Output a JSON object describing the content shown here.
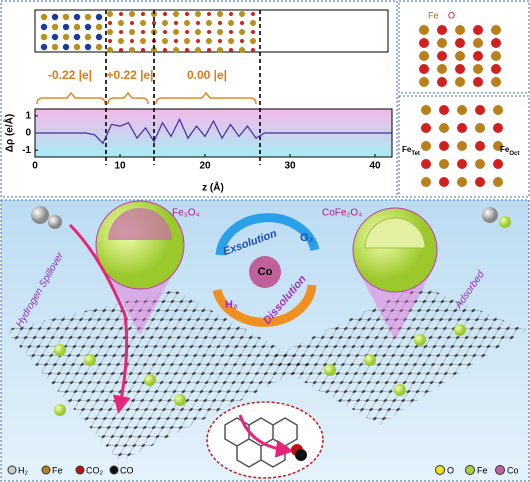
{
  "chart_data": {
    "type": "line",
    "x": [
      0,
      1,
      2,
      3,
      4,
      5,
      6,
      7,
      8,
      9,
      10,
      11,
      12,
      13,
      14,
      15,
      16,
      17,
      18,
      19,
      20,
      21,
      22,
      23,
      24,
      25,
      26,
      27,
      28,
      29,
      30,
      31,
      32,
      33,
      34,
      35,
      36,
      37,
      38,
      39,
      40,
      41,
      42
    ],
    "series": [
      {
        "color": "#4b2a9a",
        "values": [
          0,
          0,
          0,
          0,
          0,
          0,
          0,
          -0.1,
          -0.6,
          0.5,
          0.4,
          0.6,
          -0.3,
          0.3,
          -0.5,
          0.6,
          -0.2,
          0.8,
          -0.3,
          0.4,
          -0.2,
          0.7,
          -0.3,
          0.5,
          -0.2,
          0.4,
          -0.3,
          0,
          0,
          0,
          0,
          0,
          0,
          0,
          0,
          0,
          0,
          0,
          0,
          0,
          0,
          0,
          0
        ]
      }
    ],
    "xlim": [
      0,
      42
    ],
    "ylim": [
      -1.4,
      1.4
    ],
    "xticks": [
      0,
      10,
      20,
      30,
      40
    ],
    "yticks": [
      -1,
      0,
      1
    ],
    "xlabel": "z (Å)",
    "ylabel": "Δρ (e/Å)"
  },
  "charge_labels": [
    "-0.22 |e|",
    "+0.22 |e|",
    "0.00 |e|"
  ],
  "structure_labels": {
    "fe": "Fe",
    "o": "O",
    "fe_tet": "Fe",
    "tet": "Tet",
    "fe_oct": "Fe",
    "oct": "Oct"
  },
  "scheme": {
    "fe3o4": "Fe₃O₄",
    "cofe2o4": "CoFe₂O₄",
    "exsolution": "Exsolution",
    "o2": "O₂",
    "dissolution": "Dissolution",
    "h2": "H₂",
    "co": "Co",
    "spillover": "Hydrogen Spillover",
    "adsorbed": "Adsorbed"
  },
  "legend_left": [
    "H₂",
    "Fe",
    "CO₂",
    "CO"
  ],
  "legend_right": [
    "O",
    "Fe",
    "Co"
  ]
}
